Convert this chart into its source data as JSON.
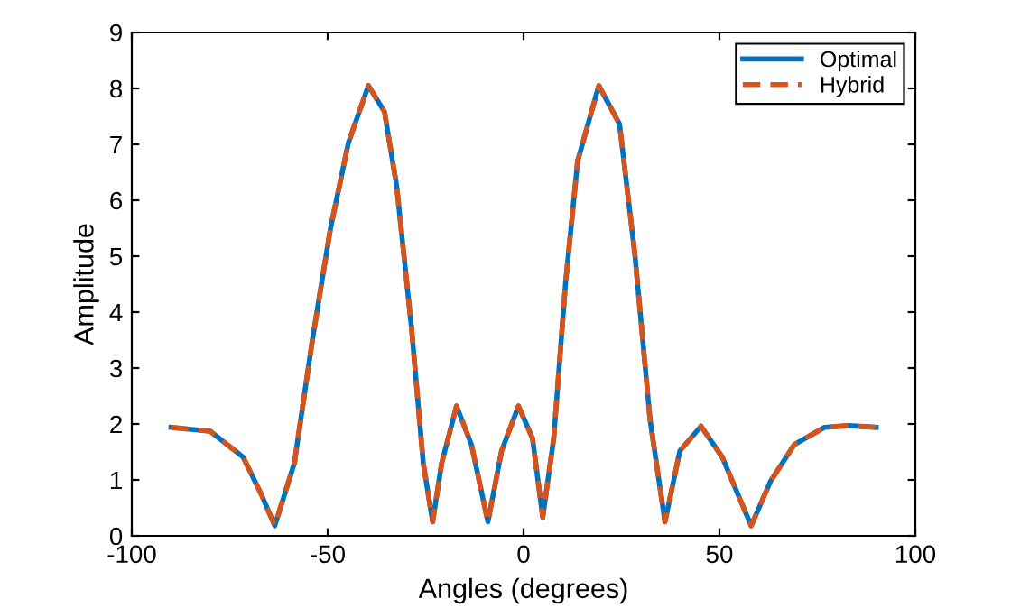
{
  "chart_data": {
    "type": "line",
    "xlabel": "Angles (degrees)",
    "ylabel": "Amplitude",
    "xlim": [
      -100,
      100
    ],
    "xticks": [
      -100,
      -50,
      0,
      50,
      100
    ],
    "ylim": [
      0,
      9
    ],
    "yticks": [
      0,
      1,
      2,
      3,
      4,
      5,
      6,
      7,
      8,
      9
    ],
    "grid": false,
    "legend": "top right",
    "x": [
      -90,
      -80,
      -71.6,
      -67,
      -63.5,
      -58.5,
      -53.9,
      -49.3,
      -44.7,
      -39.6,
      -35.5,
      -32.4,
      -28.6,
      -25.6,
      -23.2,
      -20.9,
      -17.1,
      -13.3,
      -9.1,
      -5.6,
      -1.3,
      2.3,
      4.9,
      7.7,
      10.7,
      13.8,
      19.2,
      24.5,
      28.4,
      32.3,
      36.1,
      39.9,
      45.3,
      50.7,
      58.1,
      63,
      69.1,
      76.8,
      83,
      90
    ],
    "series": [
      {
        "name": "Optimal",
        "color": "#0072bd",
        "line_style": "solid",
        "values": [
          1.94,
          1.87,
          1.41,
          0.75,
          0.18,
          1.3,
          3.5,
          5.49,
          7.03,
          8.05,
          7.58,
          6.26,
          3.72,
          1.3,
          0.25,
          1.3,
          2.32,
          1.63,
          0.25,
          1.52,
          2.32,
          1.74,
          0.33,
          1.74,
          4.5,
          6.7,
          8.05,
          7.36,
          5.04,
          2.07,
          0.25,
          1.52,
          1.96,
          1.41,
          0.18,
          0.97,
          1.63,
          1.94,
          1.97,
          1.94
        ]
      },
      {
        "name": "Hybrid",
        "color": "#d95319",
        "line_style": "dashed",
        "values": [
          1.94,
          1.87,
          1.41,
          0.75,
          0.18,
          1.3,
          3.5,
          5.49,
          7.03,
          8.05,
          7.58,
          6.26,
          3.72,
          1.3,
          0.25,
          1.3,
          2.32,
          1.63,
          0.25,
          1.52,
          2.32,
          1.74,
          0.33,
          1.74,
          4.5,
          6.7,
          8.05,
          7.36,
          5.04,
          2.07,
          0.25,
          1.52,
          1.96,
          1.41,
          0.18,
          0.97,
          1.63,
          1.94,
          1.97,
          1.94
        ]
      }
    ]
  }
}
